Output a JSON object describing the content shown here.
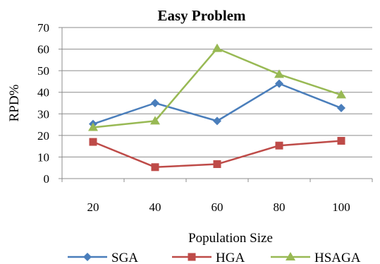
{
  "chart_data": {
    "type": "line",
    "title": "Easy Problem",
    "xlabel": "Population Size",
    "ylabel": "RPD%",
    "categories": [
      "20",
      "40",
      "60",
      "80",
      "100"
    ],
    "ylim": [
      0,
      70
    ],
    "yticks": [
      "0",
      "10",
      "20",
      "30",
      "40",
      "50",
      "60",
      "70"
    ],
    "grid": true,
    "legend_position": "bottom",
    "series": [
      {
        "name": "SGA",
        "values": [
          25.3,
          35.0,
          26.7,
          44.0,
          32.7
        ],
        "color": "#4a7ebb",
        "marker": "diamond"
      },
      {
        "name": "HGA",
        "values": [
          17.0,
          5.3,
          6.7,
          15.3,
          17.5
        ],
        "color": "#be4b48",
        "marker": "square"
      },
      {
        "name": "HSAGA",
        "values": [
          23.7,
          26.7,
          60.3,
          48.3,
          38.8
        ],
        "color": "#98b954",
        "marker": "triangle"
      }
    ]
  }
}
